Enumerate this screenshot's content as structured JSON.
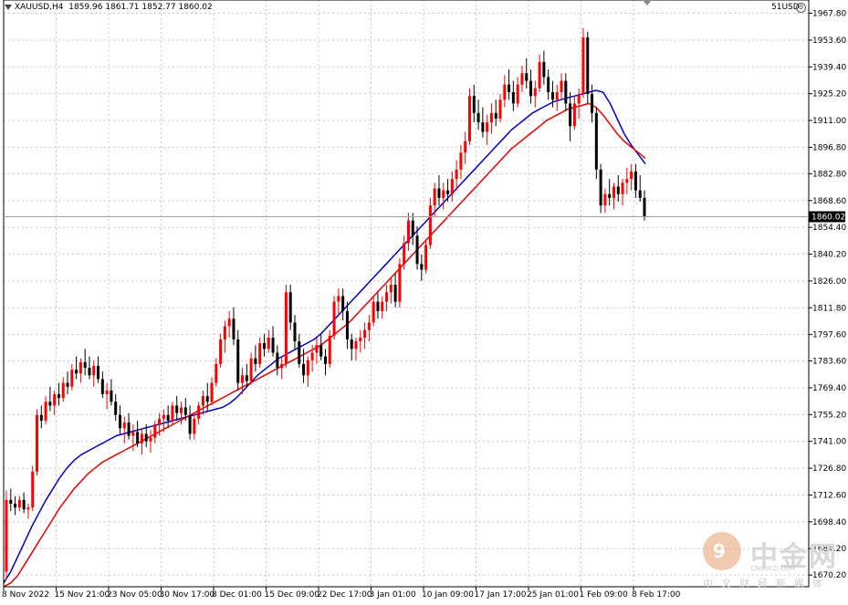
{
  "header": {
    "symbol": "XAUUSD,H4",
    "ohlc": "1859.96 1861.71 1852.77 1860.02",
    "account": "51USD"
  },
  "watermark": {
    "title": "中金网",
    "site": "CNGOLD.COM",
    "subtitle": "中文财经新媒体"
  },
  "colors": {
    "bull_candle": "#ff0000",
    "bear_candle": "#000000",
    "ma_fast": "#0000cc",
    "ma_slow": "#ee0000",
    "grid": "#c8c8c8",
    "price_tag_bg": "#000000",
    "price_line": "#a0a0a0"
  },
  "chart_data": {
    "type": "candlestick",
    "y_ticks": [
      "1967.80",
      "1953.60",
      "1939.40",
      "1925.20",
      "1911.00",
      "1896.80",
      "1882.80",
      "1868.60",
      "1854.40",
      "1840.20",
      "1826.00",
      "1811.80",
      "1797.60",
      "1783.60",
      "1769.40",
      "1755.20",
      "1741.00",
      "1726.80",
      "1712.60",
      "1698.40",
      "1684.20",
      "1670.20"
    ],
    "ylim": [
      1664,
      1970
    ],
    "x_labels": [
      "8 Nov 2022",
      "15 Nov 21:00",
      "23 Nov 05:00",
      "30 Nov 17:00",
      "8 Dec 01:00",
      "15 Dec 09:00",
      "22 Dec 17:00",
      "3 Jan 01:00",
      "10 Jan 09:00",
      "17 Jan 17:00",
      "25 Jan 01:00",
      "1 Feb 09:00",
      "8 Feb 17:00"
    ],
    "current_price": "1860.02",
    "candles": [
      [
        1672,
        1715,
        1668,
        1710
      ],
      [
        1710,
        1716,
        1704,
        1708
      ],
      [
        1708,
        1712,
        1702,
        1706
      ],
      [
        1706,
        1712,
        1704,
        1710
      ],
      [
        1710,
        1714,
        1703,
        1705
      ],
      [
        1705,
        1708,
        1700,
        1706
      ],
      [
        1706,
        1728,
        1704,
        1725
      ],
      [
        1725,
        1758,
        1723,
        1755
      ],
      [
        1755,
        1760,
        1748,
        1752
      ],
      [
        1752,
        1765,
        1750,
        1762
      ],
      [
        1762,
        1770,
        1757,
        1760
      ],
      [
        1760,
        1768,
        1755,
        1766
      ],
      [
        1766,
        1772,
        1760,
        1764
      ],
      [
        1764,
        1775,
        1762,
        1772
      ],
      [
        1772,
        1778,
        1766,
        1770
      ],
      [
        1770,
        1782,
        1768,
        1779
      ],
      [
        1779,
        1786,
        1774,
        1777
      ],
      [
        1777,
        1785,
        1772,
        1783
      ],
      [
        1783,
        1790,
        1776,
        1780
      ],
      [
        1780,
        1786,
        1774,
        1776
      ],
      [
        1776,
        1784,
        1770,
        1781
      ],
      [
        1781,
        1786,
        1772,
        1774
      ],
      [
        1774,
        1778,
        1764,
        1766
      ],
      [
        1766,
        1772,
        1758,
        1768
      ],
      [
        1768,
        1774,
        1760,
        1762
      ],
      [
        1762,
        1766,
        1752,
        1755
      ],
      [
        1755,
        1760,
        1745,
        1748
      ],
      [
        1748,
        1754,
        1740,
        1751
      ],
      [
        1751,
        1756,
        1742,
        1744
      ],
      [
        1744,
        1750,
        1736,
        1746
      ],
      [
        1746,
        1752,
        1738,
        1740
      ],
      [
        1740,
        1748,
        1734,
        1745
      ],
      [
        1745,
        1750,
        1738,
        1741
      ],
      [
        1741,
        1747,
        1735,
        1743
      ],
      [
        1743,
        1752,
        1740,
        1750
      ],
      [
        1750,
        1756,
        1744,
        1753
      ],
      [
        1753,
        1758,
        1746,
        1755
      ],
      [
        1755,
        1760,
        1748,
        1752
      ],
      [
        1752,
        1762,
        1750,
        1760
      ],
      [
        1760,
        1765,
        1752,
        1756
      ],
      [
        1756,
        1762,
        1750,
        1759
      ],
      [
        1759,
        1764,
        1752,
        1755
      ],
      [
        1755,
        1760,
        1742,
        1745
      ],
      [
        1745,
        1756,
        1742,
        1753
      ],
      [
        1753,
        1762,
        1750,
        1760
      ],
      [
        1760,
        1768,
        1755,
        1765
      ],
      [
        1765,
        1772,
        1757,
        1762
      ],
      [
        1762,
        1775,
        1760,
        1772
      ],
      [
        1772,
        1785,
        1770,
        1782
      ],
      [
        1782,
        1798,
        1780,
        1795
      ],
      [
        1795,
        1805,
        1788,
        1802
      ],
      [
        1802,
        1810,
        1796,
        1806
      ],
      [
        1806,
        1812,
        1792,
        1795
      ],
      [
        1795,
        1800,
        1768,
        1772
      ],
      [
        1772,
        1780,
        1766,
        1776
      ],
      [
        1776,
        1782,
        1770,
        1773
      ],
      [
        1773,
        1788,
        1771,
        1785
      ],
      [
        1785,
        1792,
        1778,
        1782
      ],
      [
        1782,
        1796,
        1780,
        1793
      ],
      [
        1793,
        1798,
        1786,
        1790
      ],
      [
        1790,
        1800,
        1788,
        1796
      ],
      [
        1796,
        1802,
        1786,
        1788
      ],
      [
        1788,
        1792,
        1776,
        1780
      ],
      [
        1780,
        1786,
        1774,
        1782
      ],
      [
        1782,
        1824,
        1780,
        1820
      ],
      [
        1820,
        1824,
        1800,
        1804
      ],
      [
        1804,
        1808,
        1790,
        1794
      ],
      [
        1794,
        1798,
        1780,
        1782
      ],
      [
        1782,
        1790,
        1772,
        1776
      ],
      [
        1776,
        1786,
        1770,
        1784
      ],
      [
        1784,
        1792,
        1778,
        1788
      ],
      [
        1788,
        1796,
        1782,
        1792
      ],
      [
        1792,
        1798,
        1784,
        1786
      ],
      [
        1786,
        1790,
        1776,
        1782
      ],
      [
        1782,
        1800,
        1780,
        1797
      ],
      [
        1797,
        1818,
        1795,
        1815
      ],
      [
        1815,
        1822,
        1808,
        1818
      ],
      [
        1818,
        1822,
        1805,
        1810
      ],
      [
        1810,
        1815,
        1790,
        1795
      ],
      [
        1795,
        1798,
        1784,
        1790
      ],
      [
        1790,
        1796,
        1784,
        1794
      ],
      [
        1794,
        1800,
        1788,
        1796
      ],
      [
        1796,
        1804,
        1790,
        1800
      ],
      [
        1800,
        1808,
        1794,
        1804
      ],
      [
        1804,
        1818,
        1802,
        1815
      ],
      [
        1815,
        1820,
        1806,
        1810
      ],
      [
        1810,
        1818,
        1806,
        1815
      ],
      [
        1815,
        1824,
        1810,
        1820
      ],
      [
        1820,
        1828,
        1814,
        1824
      ],
      [
        1824,
        1830,
        1812,
        1815
      ],
      [
        1815,
        1838,
        1812,
        1835
      ],
      [
        1835,
        1850,
        1832,
        1846
      ],
      [
        1846,
        1862,
        1842,
        1858
      ],
      [
        1858,
        1862,
        1845,
        1850
      ],
      [
        1850,
        1855,
        1832,
        1835
      ],
      [
        1835,
        1840,
        1826,
        1832
      ],
      [
        1832,
        1848,
        1830,
        1845
      ],
      [
        1845,
        1870,
        1843,
        1866
      ],
      [
        1866,
        1878,
        1860,
        1875
      ],
      [
        1875,
        1882,
        1866,
        1870
      ],
      [
        1870,
        1878,
        1864,
        1874
      ],
      [
        1874,
        1880,
        1868,
        1872
      ],
      [
        1872,
        1884,
        1868,
        1880
      ],
      [
        1880,
        1890,
        1874,
        1885
      ],
      [
        1885,
        1898,
        1880,
        1894
      ],
      [
        1894,
        1905,
        1888,
        1900
      ],
      [
        1900,
        1928,
        1898,
        1924
      ],
      [
        1924,
        1930,
        1910,
        1915
      ],
      [
        1915,
        1922,
        1906,
        1910
      ],
      [
        1910,
        1918,
        1902,
        1905
      ],
      [
        1905,
        1914,
        1898,
        1910
      ],
      [
        1910,
        1920,
        1904,
        1915
      ],
      [
        1915,
        1922,
        1908,
        1912
      ],
      [
        1912,
        1925,
        1910,
        1922
      ],
      [
        1922,
        1935,
        1918,
        1930
      ],
      [
        1930,
        1938,
        1922,
        1926
      ],
      [
        1926,
        1932,
        1916,
        1920
      ],
      [
        1920,
        1934,
        1918,
        1930
      ],
      [
        1930,
        1940,
        1926,
        1936
      ],
      [
        1936,
        1944,
        1928,
        1932
      ],
      [
        1932,
        1938,
        1920,
        1924
      ],
      [
        1924,
        1932,
        1918,
        1928
      ],
      [
        1928,
        1946,
        1926,
        1942
      ],
      [
        1942,
        1948,
        1930,
        1934
      ],
      [
        1934,
        1938,
        1922,
        1926
      ],
      [
        1926,
        1932,
        1918,
        1922
      ],
      [
        1922,
        1930,
        1916,
        1926
      ],
      [
        1926,
        1936,
        1922,
        1932
      ],
      [
        1932,
        1936,
        1916,
        1920
      ],
      [
        1920,
        1926,
        1900,
        1908
      ],
      [
        1908,
        1924,
        1906,
        1920
      ],
      [
        1920,
        1928,
        1912,
        1925
      ],
      [
        1925,
        1960,
        1923,
        1955
      ],
      [
        1955,
        1958,
        1920,
        1925
      ],
      [
        1925,
        1930,
        1910,
        1915
      ],
      [
        1915,
        1918,
        1880,
        1885
      ],
      [
        1885,
        1888,
        1862,
        1866
      ],
      [
        1866,
        1875,
        1862,
        1872
      ],
      [
        1872,
        1880,
        1866,
        1870
      ],
      [
        1870,
        1878,
        1864,
        1876
      ],
      [
        1876,
        1882,
        1868,
        1872
      ],
      [
        1872,
        1880,
        1866,
        1878
      ],
      [
        1878,
        1886,
        1872,
        1880
      ],
      [
        1880,
        1888,
        1874,
        1884
      ],
      [
        1884,
        1888,
        1870,
        1874
      ],
      [
        1874,
        1882,
        1868,
        1870
      ],
      [
        1870,
        1874,
        1858,
        1860
      ]
    ],
    "series": [
      {
        "ma_values": [
          1666,
          1672,
          1680,
          1688,
          1696,
          1703,
          1710,
          1716,
          1722,
          1727,
          1731,
          1734,
          1736,
          1738,
          1740,
          1742,
          1744,
          1745,
          1746,
          1747,
          1748,
          1749,
          1750,
          1751,
          1752,
          1753,
          1754,
          1755,
          1756,
          1757,
          1758,
          1759,
          1761,
          1764,
          1768,
          1772,
          1776,
          1779,
          1782,
          1785,
          1787,
          1789,
          1791,
          1793,
          1795,
          1798,
          1802,
          1806,
          1810,
          1814,
          1818,
          1822,
          1826,
          1830,
          1834,
          1838,
          1842,
          1846,
          1850,
          1854,
          1858,
          1862,
          1866,
          1870,
          1874,
          1878,
          1882,
          1886,
          1890,
          1894,
          1898,
          1902,
          1906,
          1909,
          1912,
          1915,
          1917,
          1919,
          1921,
          1922,
          1923,
          1924,
          1925,
          1926,
          1927,
          1926,
          1920,
          1912,
          1904,
          1898,
          1893,
          1888
        ]
      },
      {
        "ma_values": [
          1664,
          1666,
          1670,
          1676,
          1682,
          1688,
          1694,
          1700,
          1706,
          1711,
          1716,
          1720,
          1724,
          1727,
          1730,
          1732,
          1734,
          1736,
          1738,
          1740,
          1742,
          1744,
          1746,
          1748,
          1750,
          1752,
          1754,
          1756,
          1758,
          1760,
          1762,
          1764,
          1766,
          1768,
          1770,
          1772,
          1774,
          1776,
          1778,
          1780,
          1782,
          1784,
          1786,
          1788,
          1790,
          1792,
          1795,
          1798,
          1801,
          1804,
          1808,
          1812,
          1816,
          1820,
          1824,
          1828,
          1832,
          1836,
          1840,
          1844,
          1848,
          1852,
          1856,
          1860,
          1864,
          1868,
          1872,
          1876,
          1880,
          1884,
          1888,
          1892,
          1896,
          1899,
          1902,
          1905,
          1908,
          1911,
          1913,
          1915,
          1917,
          1918,
          1919,
          1920,
          1918,
          1914,
          1909,
          1904,
          1900,
          1897,
          1894,
          1891
        ]
      }
    ]
  }
}
